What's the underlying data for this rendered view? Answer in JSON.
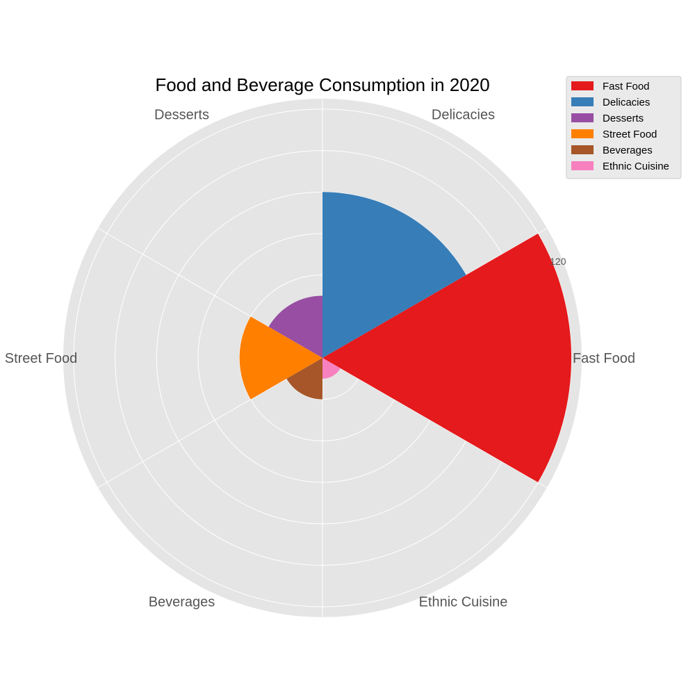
{
  "chart_data": {
    "type": "bar",
    "subtype": "polar-rose",
    "title": "Food and Beverage Consumption in 2020",
    "categories": [
      "Fast Food",
      "Delicacies",
      "Desserts",
      "Street Food",
      "Beverages",
      "Ethnic Cuisine"
    ],
    "values": [
      120,
      80,
      30,
      40,
      20,
      10
    ],
    "colors": [
      "#e41a1c",
      "#377eb8",
      "#984ea3",
      "#ff7f00",
      "#a65628",
      "#f781bf"
    ],
    "radial_ticks": [
      20,
      40,
      60,
      80,
      100,
      120
    ],
    "radial_tick_labels_shown": [
      "120"
    ],
    "rlim": [
      0,
      125
    ],
    "grid": true,
    "background_color": "#e5e5e5",
    "legend": {
      "placement": "top-right",
      "entries": [
        "Fast Food",
        "Delicacies",
        "Desserts",
        "Street Food",
        "Beverages",
        "Ethnic Cuisine"
      ]
    }
  }
}
